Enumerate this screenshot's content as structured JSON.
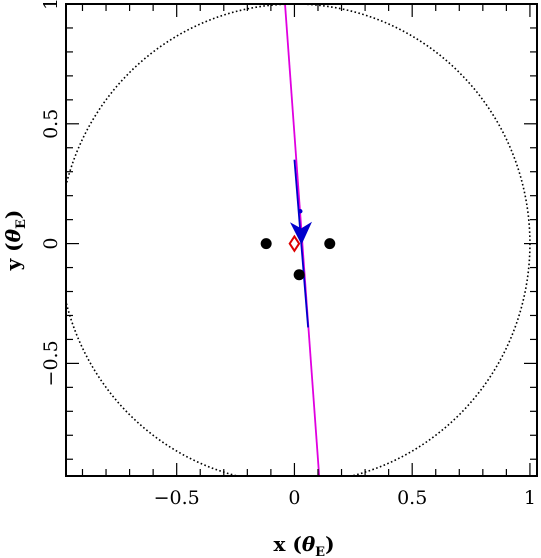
{
  "chart_data": {
    "type": "scatter",
    "xlabel": {
      "var": "x",
      "open": " (",
      "theta": "θ",
      "sub": "E",
      "close": ")"
    },
    "ylabel": {
      "var": "y",
      "open": " (",
      "theta": "θ",
      "sub": "E",
      "close": ")"
    },
    "xlim": [
      -0.97,
      1.03
    ],
    "ylim": [
      -0.97,
      1.0
    ],
    "x_ticks_major": [
      -0.5,
      0,
      0.5,
      1
    ],
    "x_tick_labels": [
      "−0.5",
      "0",
      "0.5",
      "1"
    ],
    "y_ticks_major": [
      -0.5,
      0,
      0.5,
      1
    ],
    "y_tick_labels": [
      "−0.5",
      "0",
      "0.5",
      "1"
    ],
    "minor_tick_step": 0.1,
    "grid": false,
    "einstein_ring": {
      "center": [
        0,
        0
      ],
      "radius": 1.0,
      "style": "dotted",
      "color": "#000000"
    },
    "lens_masses": [
      {
        "x": -0.12,
        "y": 0.0
      },
      {
        "x": 0.15,
        "y": 0.0
      },
      {
        "x": 0.02,
        "y": -0.13
      }
    ],
    "source_trajectory": {
      "color": "#e000e0",
      "points": [
        [
          -0.04,
          1.0
        ],
        [
          0.105,
          -0.97
        ]
      ]
    },
    "trajectory_segment": {
      "color": "#0000cc",
      "points": [
        [
          0.0,
          0.35
        ],
        [
          0.058,
          -0.35
        ]
      ],
      "dot": [
        0.025,
        0.135
      ],
      "arrow_tip": [
        0.03,
        -0.005
      ],
      "arrow_base": [
        0.028,
        0.09
      ]
    },
    "caustic": {
      "color": "#dd0000",
      "points": [
        [
          0.0,
          0.03
        ],
        [
          0.02,
          0.0
        ],
        [
          0.0,
          -0.03
        ],
        [
          -0.02,
          0.0
        ]
      ]
    },
    "colors": {
      "frame": "#000000",
      "mass": "#000000"
    }
  }
}
